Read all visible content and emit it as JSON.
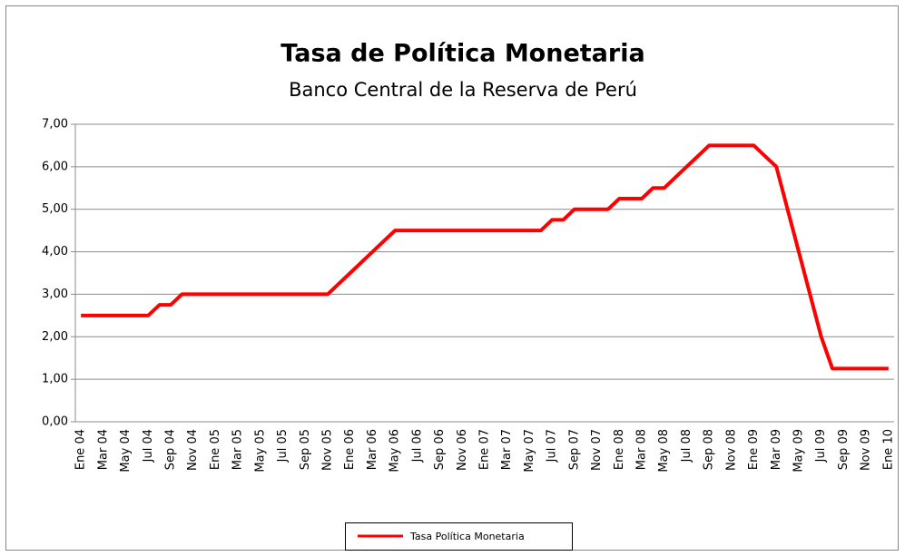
{
  "chart_data": {
    "type": "line",
    "title": "Tasa de Política Monetaria",
    "subtitle": "Banco Central de la Reserva de Perú",
    "categories": [
      "Ene 04",
      null,
      "Mar 04",
      null,
      "May 04",
      null,
      "Jul 04",
      null,
      "Sep 04",
      null,
      "Nov 04",
      null,
      "Ene 05",
      null,
      "Mar 05",
      null,
      "May 05",
      null,
      "Jul 05",
      null,
      "Sep 05",
      null,
      "Nov 05",
      null,
      "Ene 06",
      null,
      "Mar 06",
      null,
      "May 06",
      null,
      "Jul 06",
      null,
      "Sep 06",
      null,
      "Nov 06",
      null,
      "Ene 07",
      null,
      "Mar 07",
      null,
      "May 07",
      null,
      "Jul 07",
      null,
      "Sep 07",
      null,
      "Nov 07",
      null,
      "Ene 08",
      null,
      "Mar 08",
      null,
      "May 08",
      null,
      "Jul 08",
      null,
      "Sep 08",
      null,
      "Nov 08",
      null,
      "Ene 09",
      null,
      "Mar 09",
      null,
      "May 09",
      null,
      "Jul 09",
      null,
      "Sep 09",
      null,
      "Nov 09",
      null,
      "Ene 10"
    ],
    "series": [
      {
        "name": "Tasa Política  Monetaria",
        "color": "#ff0000",
        "values": [
          2.5,
          2.5,
          2.5,
          2.5,
          2.5,
          2.5,
          2.5,
          2.75,
          2.75,
          3.0,
          3.0,
          3.0,
          3.0,
          3.0,
          3.0,
          3.0,
          3.0,
          3.0,
          3.0,
          3.0,
          3.0,
          3.0,
          3.0,
          3.25,
          3.5,
          3.75,
          4.0,
          4.25,
          4.5,
          4.5,
          4.5,
          4.5,
          4.5,
          4.5,
          4.5,
          4.5,
          4.5,
          4.5,
          4.5,
          4.5,
          4.5,
          4.5,
          4.75,
          4.75,
          5.0,
          5.0,
          5.0,
          5.0,
          5.25,
          5.25,
          5.25,
          5.5,
          5.5,
          5.75,
          6.0,
          6.25,
          6.5,
          6.5,
          6.5,
          6.5,
          6.5,
          6.25,
          6.0,
          5.0,
          4.0,
          3.0,
          2.0,
          1.25,
          1.25,
          1.25,
          1.25,
          1.25,
          1.25
        ]
      }
    ],
    "ylim": [
      0,
      7
    ],
    "yticks": [
      {
        "value": 0,
        "label": "0,00"
      },
      {
        "value": 1,
        "label": "1,00"
      },
      {
        "value": 2,
        "label": "2,00"
      },
      {
        "value": 3,
        "label": "3,00"
      },
      {
        "value": 4,
        "label": "4,00"
      },
      {
        "value": 5,
        "label": "5,00"
      },
      {
        "value": 6,
        "label": "6,00"
      },
      {
        "value": 7,
        "label": "7,00"
      }
    ],
    "grid": true,
    "legend": "bottom"
  }
}
